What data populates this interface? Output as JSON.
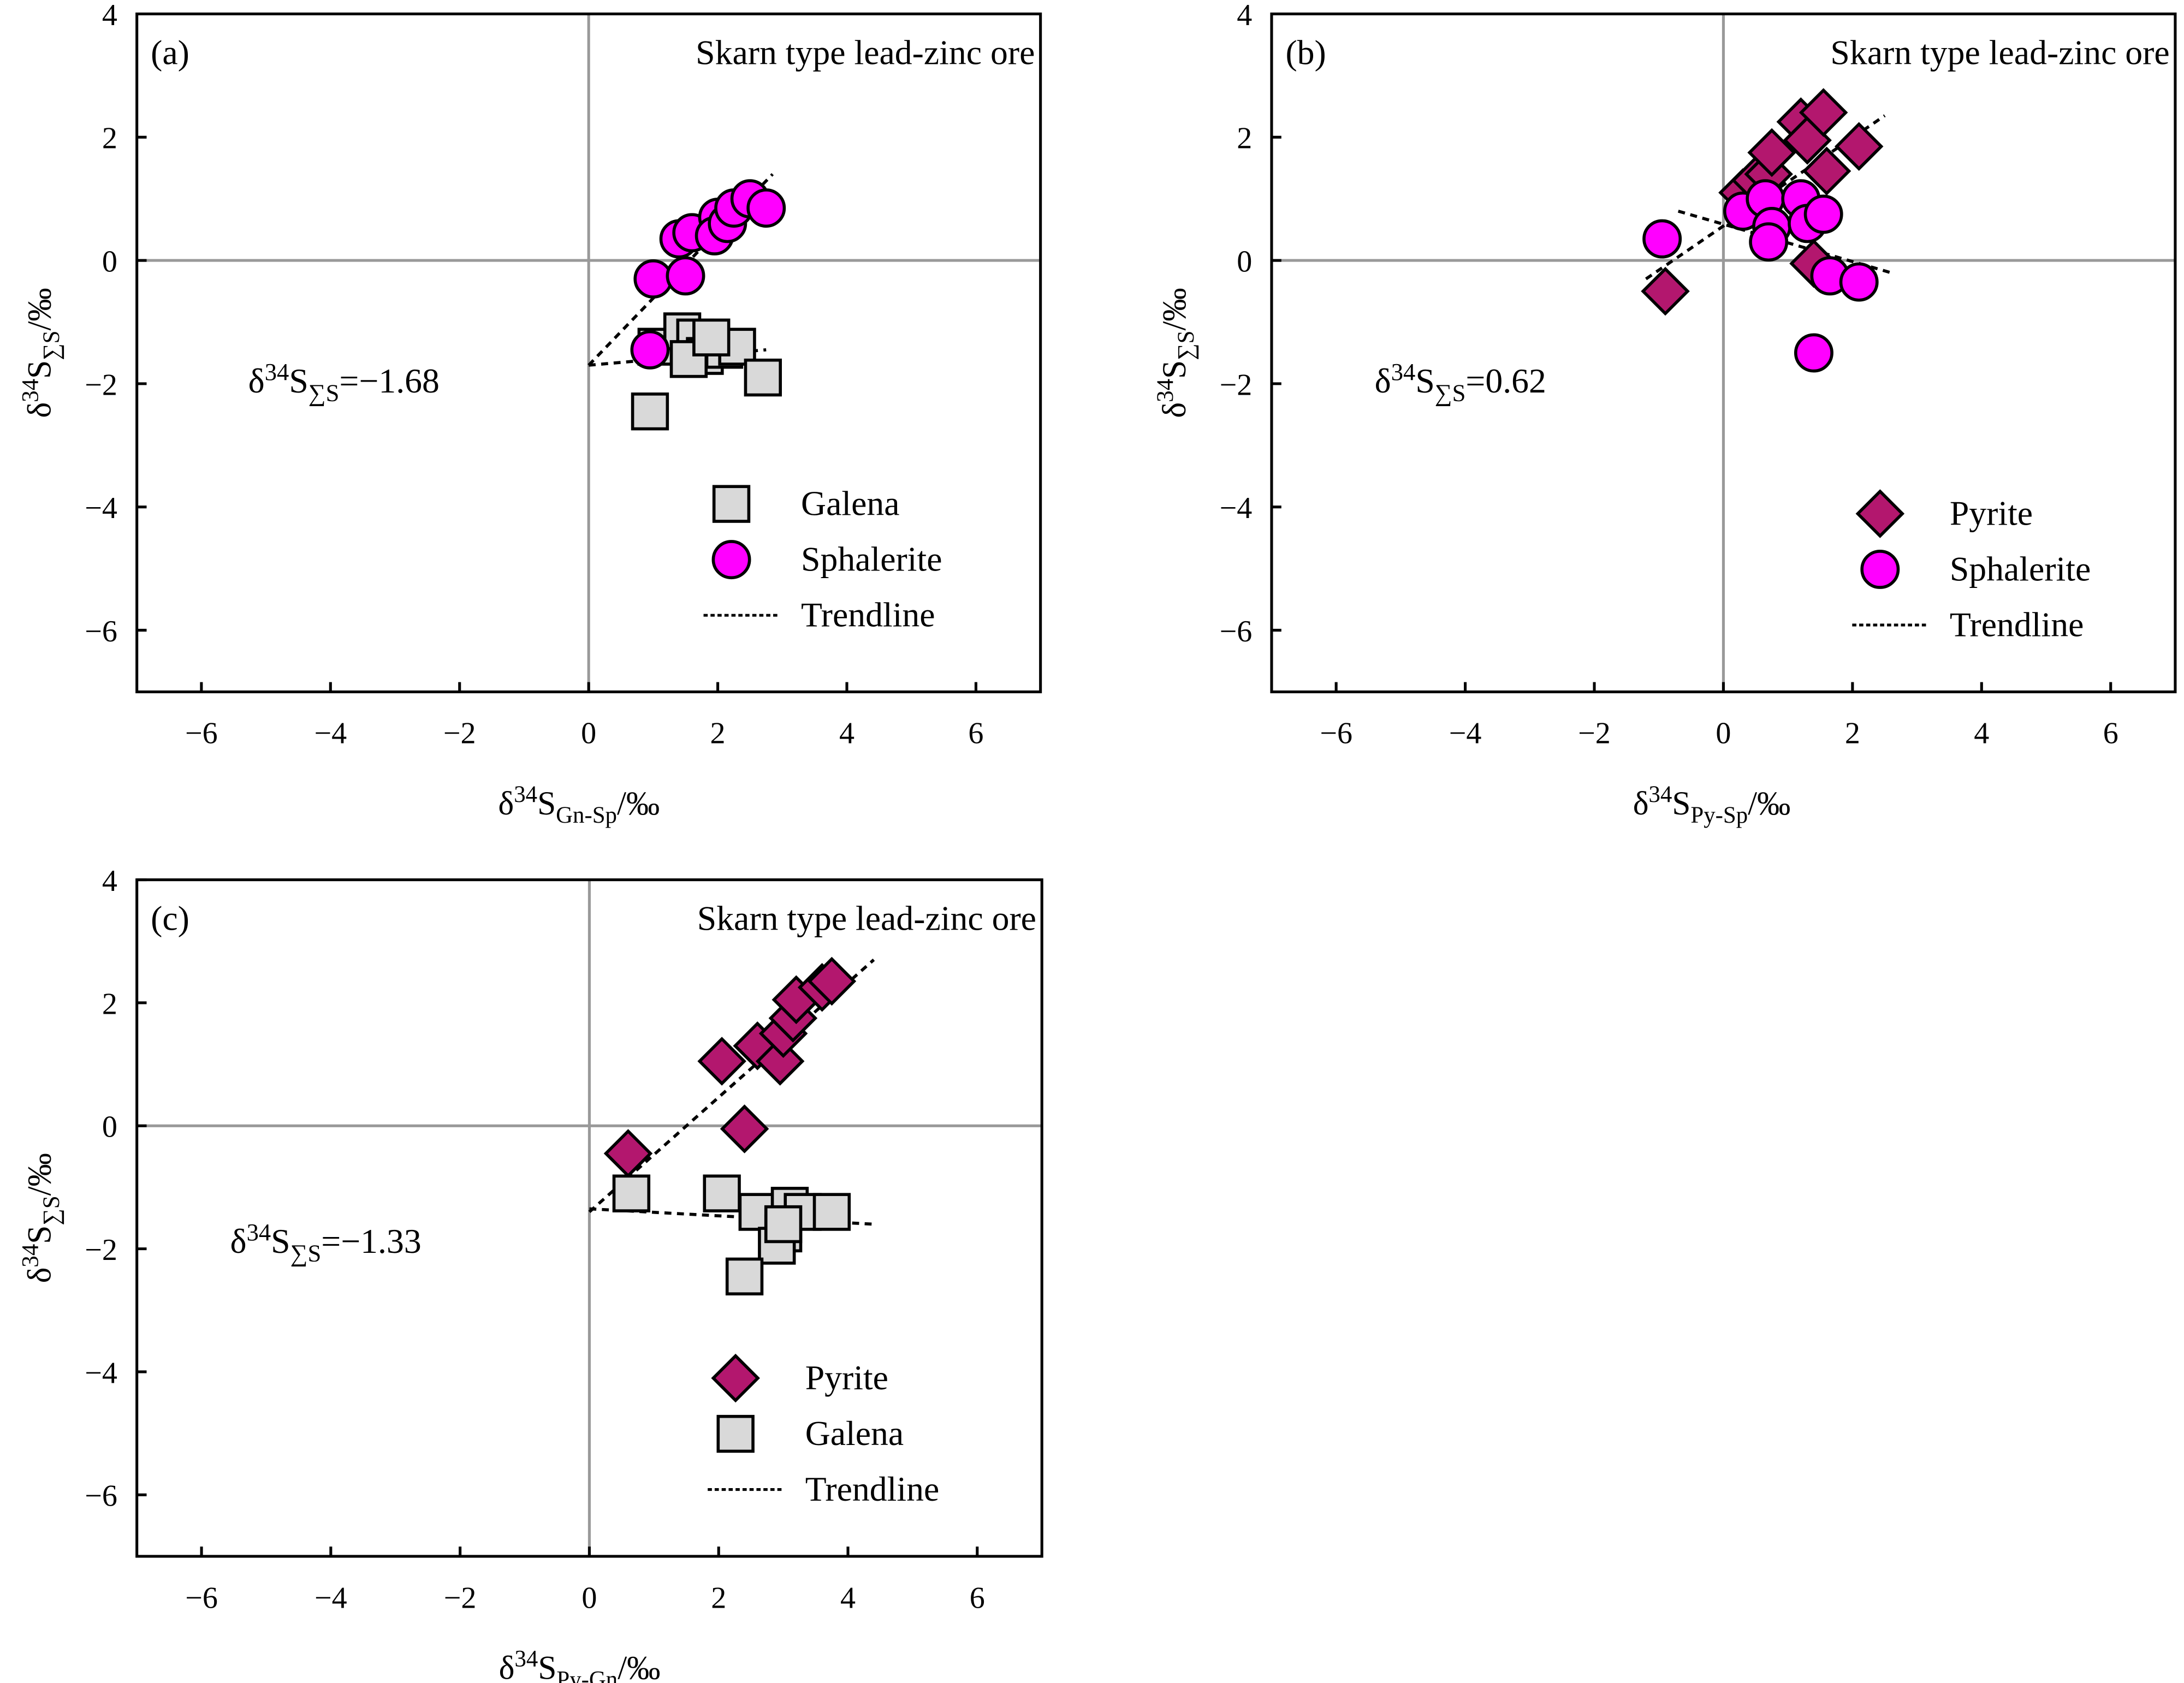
{
  "chart_data": [
    {
      "type": "scatter",
      "panel_label": "(a)",
      "title": "Skarn type lead-zinc ore",
      "xlabel": {
        "prefix": "δ",
        "sup": "34",
        "main": "S",
        "sub": "Gn-Sp",
        "unit": "/‰"
      },
      "ylabel": {
        "prefix": "δ",
        "sup": "34",
        "main": "S",
        "sub": "∑S",
        "unit": "/‰"
      },
      "annotation": {
        "prefix": "δ",
        "sup": "34",
        "main": "S",
        "sub": "∑S",
        "value": "=−1.68"
      },
      "xlim": [
        -7,
        7
      ],
      "ylim": [
        -7,
        4
      ],
      "xticks": [
        "−6",
        "−4",
        "−2",
        "0",
        "2",
        "4",
        "6"
      ],
      "yticks": [
        "4",
        "2",
        "0",
        "−2",
        "−4",
        "−6"
      ],
      "legend_position": "bottom-right",
      "series": [
        {
          "name": "Galena",
          "marker": "square",
          "color": "#d9d9d9",
          "x": [
            0.95,
            1.05,
            1.45,
            1.65,
            1.8,
            1.55,
            2.1,
            2.3,
            2.7,
            1.9
          ],
          "y": [
            -2.45,
            -1.4,
            -1.15,
            -1.25,
            -1.55,
            -1.6,
            -1.45,
            -1.4,
            -1.9,
            -1.25
          ]
        },
        {
          "name": "Sphalerite",
          "marker": "circle",
          "color": "#ff00ff",
          "x": [
            1.0,
            1.5,
            1.4,
            1.6,
            2.0,
            1.95,
            2.15,
            2.25,
            2.5,
            2.75,
            0.95
          ],
          "y": [
            -0.3,
            -0.25,
            0.35,
            0.45,
            0.7,
            0.4,
            0.6,
            0.85,
            1.0,
            0.85,
            -1.45
          ]
        }
      ],
      "trendline_label": "Trendline",
      "trendlines": [
        [
          [
            0,
            -1.7
          ],
          [
            2.85,
            1.4
          ]
        ],
        [
          [
            0,
            -1.7
          ],
          [
            2.75,
            -1.45
          ]
        ]
      ]
    },
    {
      "type": "scatter",
      "panel_label": "(b)",
      "title": "Skarn type lead-zinc ore",
      "xlabel": {
        "prefix": "δ",
        "sup": "34",
        "main": "S",
        "sub": "Py-Sp",
        "unit": "/‰"
      },
      "ylabel": {
        "prefix": "δ",
        "sup": "34",
        "main": "S",
        "sub": "∑S",
        "unit": "/‰"
      },
      "annotation": {
        "prefix": "δ",
        "sup": "34",
        "main": "S",
        "sub": "∑S",
        "value": "=0.62"
      },
      "xlim": [
        -7,
        7
      ],
      "ylim": [
        -7,
        4
      ],
      "xticks": [
        "−6",
        "−4",
        "−2",
        "0",
        "2",
        "4",
        "6"
      ],
      "yticks": [
        "4",
        "2",
        "0",
        "−2",
        "−4",
        "−6"
      ],
      "legend_position": "bottom-right",
      "series": [
        {
          "name": "Pyrite",
          "marker": "diamond",
          "color": "#b3176e",
          "x": [
            -0.9,
            0.3,
            0.5,
            0.7,
            0.75,
            1.2,
            1.3,
            1.55,
            1.6,
            2.1,
            1.4
          ],
          "y": [
            -0.5,
            1.1,
            1.3,
            1.4,
            1.75,
            2.25,
            1.95,
            2.4,
            1.45,
            1.85,
            -0.05
          ]
        },
        {
          "name": "Sphalerite",
          "marker": "circle",
          "color": "#ff00ff",
          "x": [
            -0.95,
            0.3,
            0.65,
            0.75,
            0.7,
            1.2,
            1.3,
            1.55,
            1.65,
            2.1,
            1.4
          ],
          "y": [
            0.35,
            0.8,
            1.0,
            0.55,
            0.3,
            1.0,
            0.6,
            0.75,
            -0.25,
            -0.35,
            -1.5
          ]
        }
      ],
      "trendline_label": "Trendline",
      "trendlines": [
        [
          [
            -1.2,
            -0.3
          ],
          [
            2.5,
            2.35
          ]
        ],
        [
          [
            -0.7,
            0.8
          ],
          [
            2.6,
            -0.2
          ]
        ]
      ]
    },
    {
      "type": "scatter",
      "panel_label": "(c)",
      "title": "Skarn type lead-zinc ore",
      "xlabel": {
        "prefix": "δ",
        "sup": "34",
        "main": "S",
        "sub": "Py-Gn",
        "unit": "/‰"
      },
      "ylabel": {
        "prefix": "δ",
        "sup": "34",
        "main": "S",
        "sub": "∑S",
        "unit": "/‰"
      },
      "annotation": {
        "prefix": "δ",
        "sup": "34",
        "main": "S",
        "sub": "∑S",
        "value": "=−1.33"
      },
      "xlim": [
        -7,
        7
      ],
      "ylim": [
        -7,
        4
      ],
      "xticks": [
        "−6",
        "−4",
        "−2",
        "0",
        "2",
        "4",
        "6"
      ],
      "yticks": [
        "4",
        "2",
        "0",
        "−2",
        "−4",
        "−6"
      ],
      "legend_position": "bottom-right",
      "series": [
        {
          "name": "Pyrite",
          "marker": "diamond",
          "color": "#b3176e",
          "x": [
            0.6,
            2.05,
            2.4,
            2.6,
            2.95,
            3.0,
            3.15,
            3.2,
            3.6,
            3.75
          ],
          "y": [
            -0.45,
            1.05,
            -0.05,
            1.3,
            1.05,
            1.5,
            1.75,
            2.05,
            2.25,
            2.35
          ]
        },
        {
          "name": "Galena",
          "marker": "square",
          "color": "#d9d9d9",
          "x": [
            0.65,
            2.05,
            2.6,
            3.1,
            3.0,
            2.9,
            3.3,
            3.75,
            2.4,
            3.0
          ],
          "y": [
            -1.1,
            -1.1,
            -1.4,
            -1.3,
            -1.75,
            -1.95,
            -1.4,
            -1.4,
            -2.45,
            -1.6
          ]
        }
      ],
      "trendline_label": "Trendline",
      "trendlines": [
        [
          [
            0,
            -1.4
          ],
          [
            4.4,
            2.7
          ]
        ],
        [
          [
            0,
            -1.35
          ],
          [
            4.4,
            -1.6
          ]
        ]
      ]
    }
  ]
}
